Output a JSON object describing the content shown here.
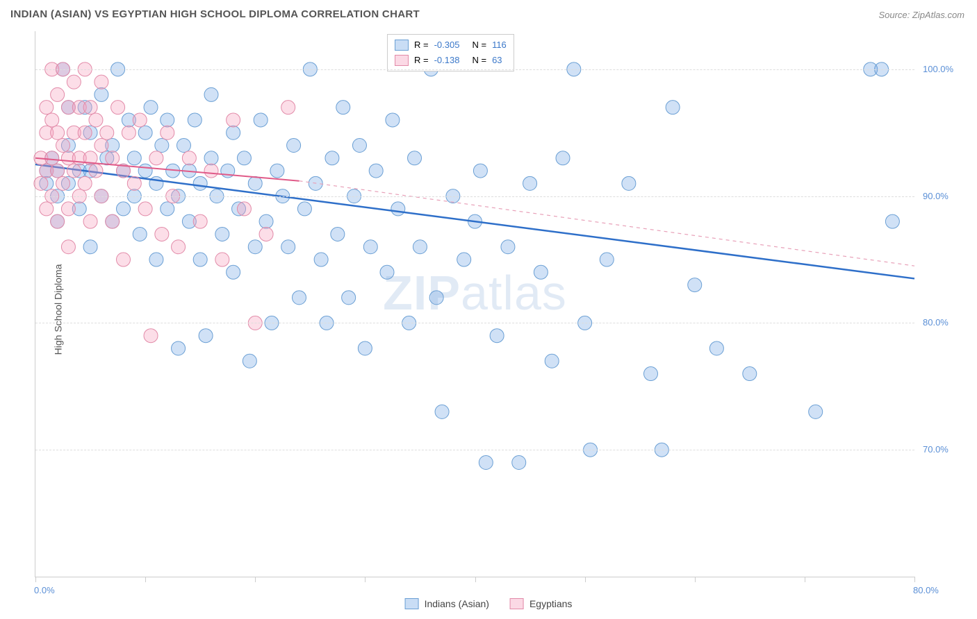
{
  "title": "INDIAN (ASIAN) VS EGYPTIAN HIGH SCHOOL DIPLOMA CORRELATION CHART",
  "source": "Source: ZipAtlas.com",
  "y_axis_label": "High School Diploma",
  "watermark_bold": "ZIP",
  "watermark_rest": "atlas",
  "chart": {
    "type": "scatter",
    "background_color": "#ffffff",
    "grid_color": "#dddddd",
    "border_color": "#cccccc",
    "xlim": [
      0,
      80
    ],
    "ylim": [
      60,
      103
    ],
    "x_ticks": [
      0,
      10,
      20,
      30,
      40,
      50,
      60,
      70,
      80
    ],
    "x_tick_labels": {
      "0": "0.0%",
      "80": "80.0%"
    },
    "y_gridlines": [
      70,
      80,
      90,
      100
    ],
    "y_tick_labels": {
      "70": "70.0%",
      "80": "80.0%",
      "90": "90.0%",
      "100": "100.0%"
    },
    "label_color": "#5a8fd6",
    "label_fontsize": 13,
    "series": [
      {
        "name": "Indians (Asian)",
        "color_fill": "rgba(120,170,230,0.35)",
        "color_stroke": "#6a9fd4",
        "marker_radius": 10,
        "trend": {
          "x1": 0,
          "y1": 92.5,
          "x2": 80,
          "y2": 83.5,
          "color": "#2e6fc9",
          "width": 2.5,
          "dash": "none"
        },
        "trend_extrapolate": null,
        "points": [
          [
            1,
            92
          ],
          [
            1,
            91
          ],
          [
            1.5,
            93
          ],
          [
            2,
            92
          ],
          [
            2,
            88
          ],
          [
            2,
            90
          ],
          [
            2.5,
            100
          ],
          [
            3,
            97
          ],
          [
            3,
            94
          ],
          [
            3,
            91
          ],
          [
            4,
            89
          ],
          [
            4,
            92
          ],
          [
            4.5,
            97
          ],
          [
            5,
            95
          ],
          [
            5,
            92
          ],
          [
            5,
            86
          ],
          [
            6,
            90
          ],
          [
            6,
            98
          ],
          [
            6.5,
            93
          ],
          [
            7,
            94
          ],
          [
            7,
            88
          ],
          [
            7.5,
            100
          ],
          [
            8,
            92
          ],
          [
            8,
            89
          ],
          [
            8.5,
            96
          ],
          [
            9,
            93
          ],
          [
            9,
            90
          ],
          [
            9.5,
            87
          ],
          [
            10,
            95
          ],
          [
            10,
            92
          ],
          [
            10.5,
            97
          ],
          [
            11,
            91
          ],
          [
            11,
            85
          ],
          [
            11.5,
            94
          ],
          [
            12,
            96
          ],
          [
            12,
            89
          ],
          [
            12.5,
            92
          ],
          [
            13,
            78
          ],
          [
            13,
            90
          ],
          [
            13.5,
            94
          ],
          [
            14,
            88
          ],
          [
            14,
            92
          ],
          [
            14.5,
            96
          ],
          [
            15,
            91
          ],
          [
            15,
            85
          ],
          [
            15.5,
            79
          ],
          [
            16,
            93
          ],
          [
            16,
            98
          ],
          [
            16.5,
            90
          ],
          [
            17,
            87
          ],
          [
            17.5,
            92
          ],
          [
            18,
            95
          ],
          [
            18,
            84
          ],
          [
            18.5,
            89
          ],
          [
            19,
            93
          ],
          [
            19.5,
            77
          ],
          [
            20,
            91
          ],
          [
            20,
            86
          ],
          [
            20.5,
            96
          ],
          [
            21,
            88
          ],
          [
            21.5,
            80
          ],
          [
            22,
            92
          ],
          [
            22.5,
            90
          ],
          [
            23,
            86
          ],
          [
            23.5,
            94
          ],
          [
            24,
            82
          ],
          [
            24.5,
            89
          ],
          [
            25,
            100
          ],
          [
            25.5,
            91
          ],
          [
            26,
            85
          ],
          [
            26.5,
            80
          ],
          [
            27,
            93
          ],
          [
            27.5,
            87
          ],
          [
            28,
            97
          ],
          [
            28.5,
            82
          ],
          [
            29,
            90
          ],
          [
            29.5,
            94
          ],
          [
            30,
            78
          ],
          [
            30.5,
            86
          ],
          [
            31,
            92
          ],
          [
            32,
            84
          ],
          [
            32.5,
            96
          ],
          [
            33,
            89
          ],
          [
            34,
            80
          ],
          [
            34.5,
            93
          ],
          [
            35,
            86
          ],
          [
            36,
            100
          ],
          [
            36.5,
            82
          ],
          [
            37,
            73
          ],
          [
            38,
            90
          ],
          [
            39,
            85
          ],
          [
            40,
            88
          ],
          [
            40.5,
            92
          ],
          [
            41,
            69
          ],
          [
            42,
            79
          ],
          [
            43,
            86
          ],
          [
            44,
            69
          ],
          [
            45,
            91
          ],
          [
            46,
            84
          ],
          [
            47,
            77
          ],
          [
            48,
            93
          ],
          [
            49,
            100
          ],
          [
            50,
            80
          ],
          [
            50.5,
            70
          ],
          [
            52,
            85
          ],
          [
            54,
            91
          ],
          [
            56,
            76
          ],
          [
            57,
            70
          ],
          [
            58,
            97
          ],
          [
            60,
            83
          ],
          [
            62,
            78
          ],
          [
            65,
            76
          ],
          [
            71,
            73
          ],
          [
            76,
            100
          ],
          [
            77,
            100
          ],
          [
            78,
            88
          ]
        ]
      },
      {
        "name": "Egyptians",
        "color_fill": "rgba(245,160,190,0.35)",
        "color_stroke": "#e28aa8",
        "marker_radius": 10,
        "trend": {
          "x1": 0,
          "y1": 93.0,
          "x2": 24,
          "y2": 91.2,
          "color": "#e05a88",
          "width": 2,
          "dash": "none"
        },
        "trend_extrapolate": {
          "x1": 24,
          "y1": 91.2,
          "x2": 80,
          "y2": 84.5,
          "color": "#e8a0b8",
          "width": 1.2,
          "dash": "5,5"
        },
        "points": [
          [
            0.5,
            93
          ],
          [
            0.5,
            91
          ],
          [
            1,
            97
          ],
          [
            1,
            95
          ],
          [
            1,
            92
          ],
          [
            1,
            89
          ],
          [
            1.5,
            100
          ],
          [
            1.5,
            96
          ],
          [
            1.5,
            93
          ],
          [
            1.5,
            90
          ],
          [
            2,
            98
          ],
          [
            2,
            95
          ],
          [
            2,
            92
          ],
          [
            2,
            88
          ],
          [
            2.5,
            100
          ],
          [
            2.5,
            94
          ],
          [
            2.5,
            91
          ],
          [
            3,
            97
          ],
          [
            3,
            93
          ],
          [
            3,
            89
          ],
          [
            3,
            86
          ],
          [
            3.5,
            99
          ],
          [
            3.5,
            95
          ],
          [
            3.5,
            92
          ],
          [
            4,
            97
          ],
          [
            4,
            93
          ],
          [
            4,
            90
          ],
          [
            4.5,
            100
          ],
          [
            4.5,
            95
          ],
          [
            4.5,
            91
          ],
          [
            5,
            97
          ],
          [
            5,
            93
          ],
          [
            5,
            88
          ],
          [
            5.5,
            96
          ],
          [
            5.5,
            92
          ],
          [
            6,
            99
          ],
          [
            6,
            94
          ],
          [
            6,
            90
          ],
          [
            6.5,
            95
          ],
          [
            7,
            93
          ],
          [
            7,
            88
          ],
          [
            7.5,
            97
          ],
          [
            8,
            92
          ],
          [
            8,
            85
          ],
          [
            8.5,
            95
          ],
          [
            9,
            91
          ],
          [
            9.5,
            96
          ],
          [
            10,
            89
          ],
          [
            10.5,
            79
          ],
          [
            11,
            93
          ],
          [
            11.5,
            87
          ],
          [
            12,
            95
          ],
          [
            12.5,
            90
          ],
          [
            13,
            86
          ],
          [
            14,
            93
          ],
          [
            15,
            88
          ],
          [
            16,
            92
          ],
          [
            17,
            85
          ],
          [
            18,
            96
          ],
          [
            19,
            89
          ],
          [
            20,
            80
          ],
          [
            21,
            87
          ],
          [
            23,
            97
          ]
        ]
      }
    ],
    "correlation_box": {
      "rows": [
        {
          "swatch_fill": "rgba(120,170,230,0.4)",
          "swatch_stroke": "#6a9fd4",
          "r_label": "R =",
          "r_value": "-0.305",
          "n_label": "N =",
          "n_value": "116"
        },
        {
          "swatch_fill": "rgba(245,160,190,0.4)",
          "swatch_stroke": "#e28aa8",
          "r_label": "R =",
          "r_value": "-0.138",
          "n_label": "N =",
          "n_value": "63"
        }
      ]
    }
  },
  "bottom_legend": [
    {
      "swatch_fill": "rgba(120,170,230,0.4)",
      "swatch_stroke": "#6a9fd4",
      "label": "Indians (Asian)"
    },
    {
      "swatch_fill": "rgba(245,160,190,0.4)",
      "swatch_stroke": "#e28aa8",
      "label": "Egyptians"
    }
  ]
}
